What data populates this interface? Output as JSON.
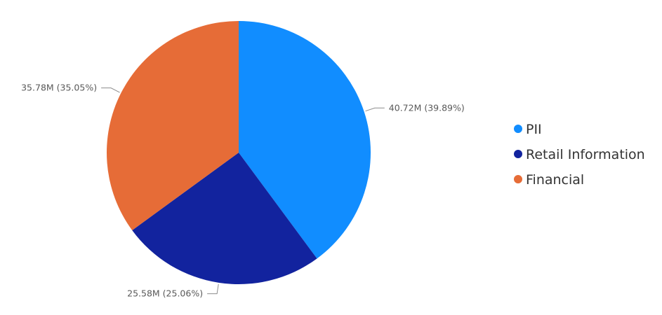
{
  "chart_data": {
    "type": "pie",
    "title": "",
    "categories": [
      "PII",
      "Retail Information",
      "Financial"
    ],
    "values": [
      40.72,
      25.58,
      35.78
    ],
    "units": "M",
    "data_labels": [
      "40.72M (39.89%)",
      "25.58M (25.06%)",
      "35.78M (35.05%)"
    ],
    "colors": [
      "#118dff",
      "#12239e",
      "#e66c37"
    ],
    "legend": {
      "placement": "right",
      "entries": [
        "PII",
        "Retail Information",
        "Financial"
      ]
    }
  }
}
